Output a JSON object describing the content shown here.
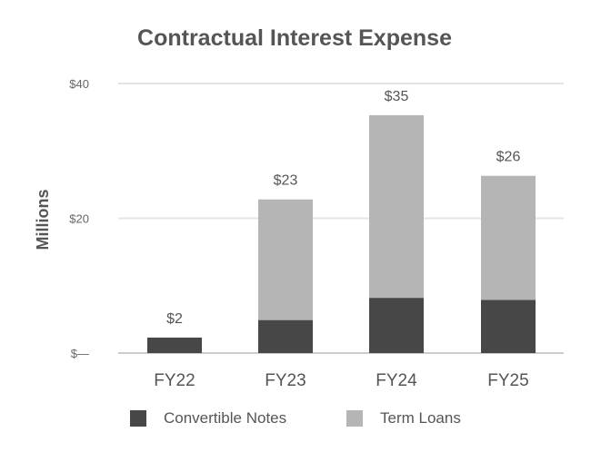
{
  "chart_data": {
    "type": "bar",
    "stacked": true,
    "title": "Contractual Interest Expense",
    "xlabel": "",
    "ylabel": "Millions",
    "ylim": [
      0,
      40
    ],
    "yticks": [
      0,
      20,
      40
    ],
    "ytick_labels": [
      "$—",
      "$20",
      "$40"
    ],
    "grid": true,
    "legend_position": "bottom-center",
    "categories": [
      "FY22",
      "FY23",
      "FY24",
      "FY25"
    ],
    "series": [
      {
        "name": "Convertible Notes",
        "values": [
          2.3,
          4.9,
          8.2,
          7.9
        ],
        "color": "#474747"
      },
      {
        "name": "Term Loans",
        "values": [
          0,
          17.9,
          27.1,
          18.4
        ],
        "color": "#b5b5b5"
      }
    ],
    "totals": [
      2,
      23,
      35,
      26
    ],
    "total_labels": [
      "$2",
      "$23",
      "$35",
      "$26"
    ]
  },
  "colors": {
    "title": "#555555",
    "text": "#555555",
    "tick": "#666666",
    "grid": "#e5e5e5",
    "axis": "#cccccc"
  }
}
